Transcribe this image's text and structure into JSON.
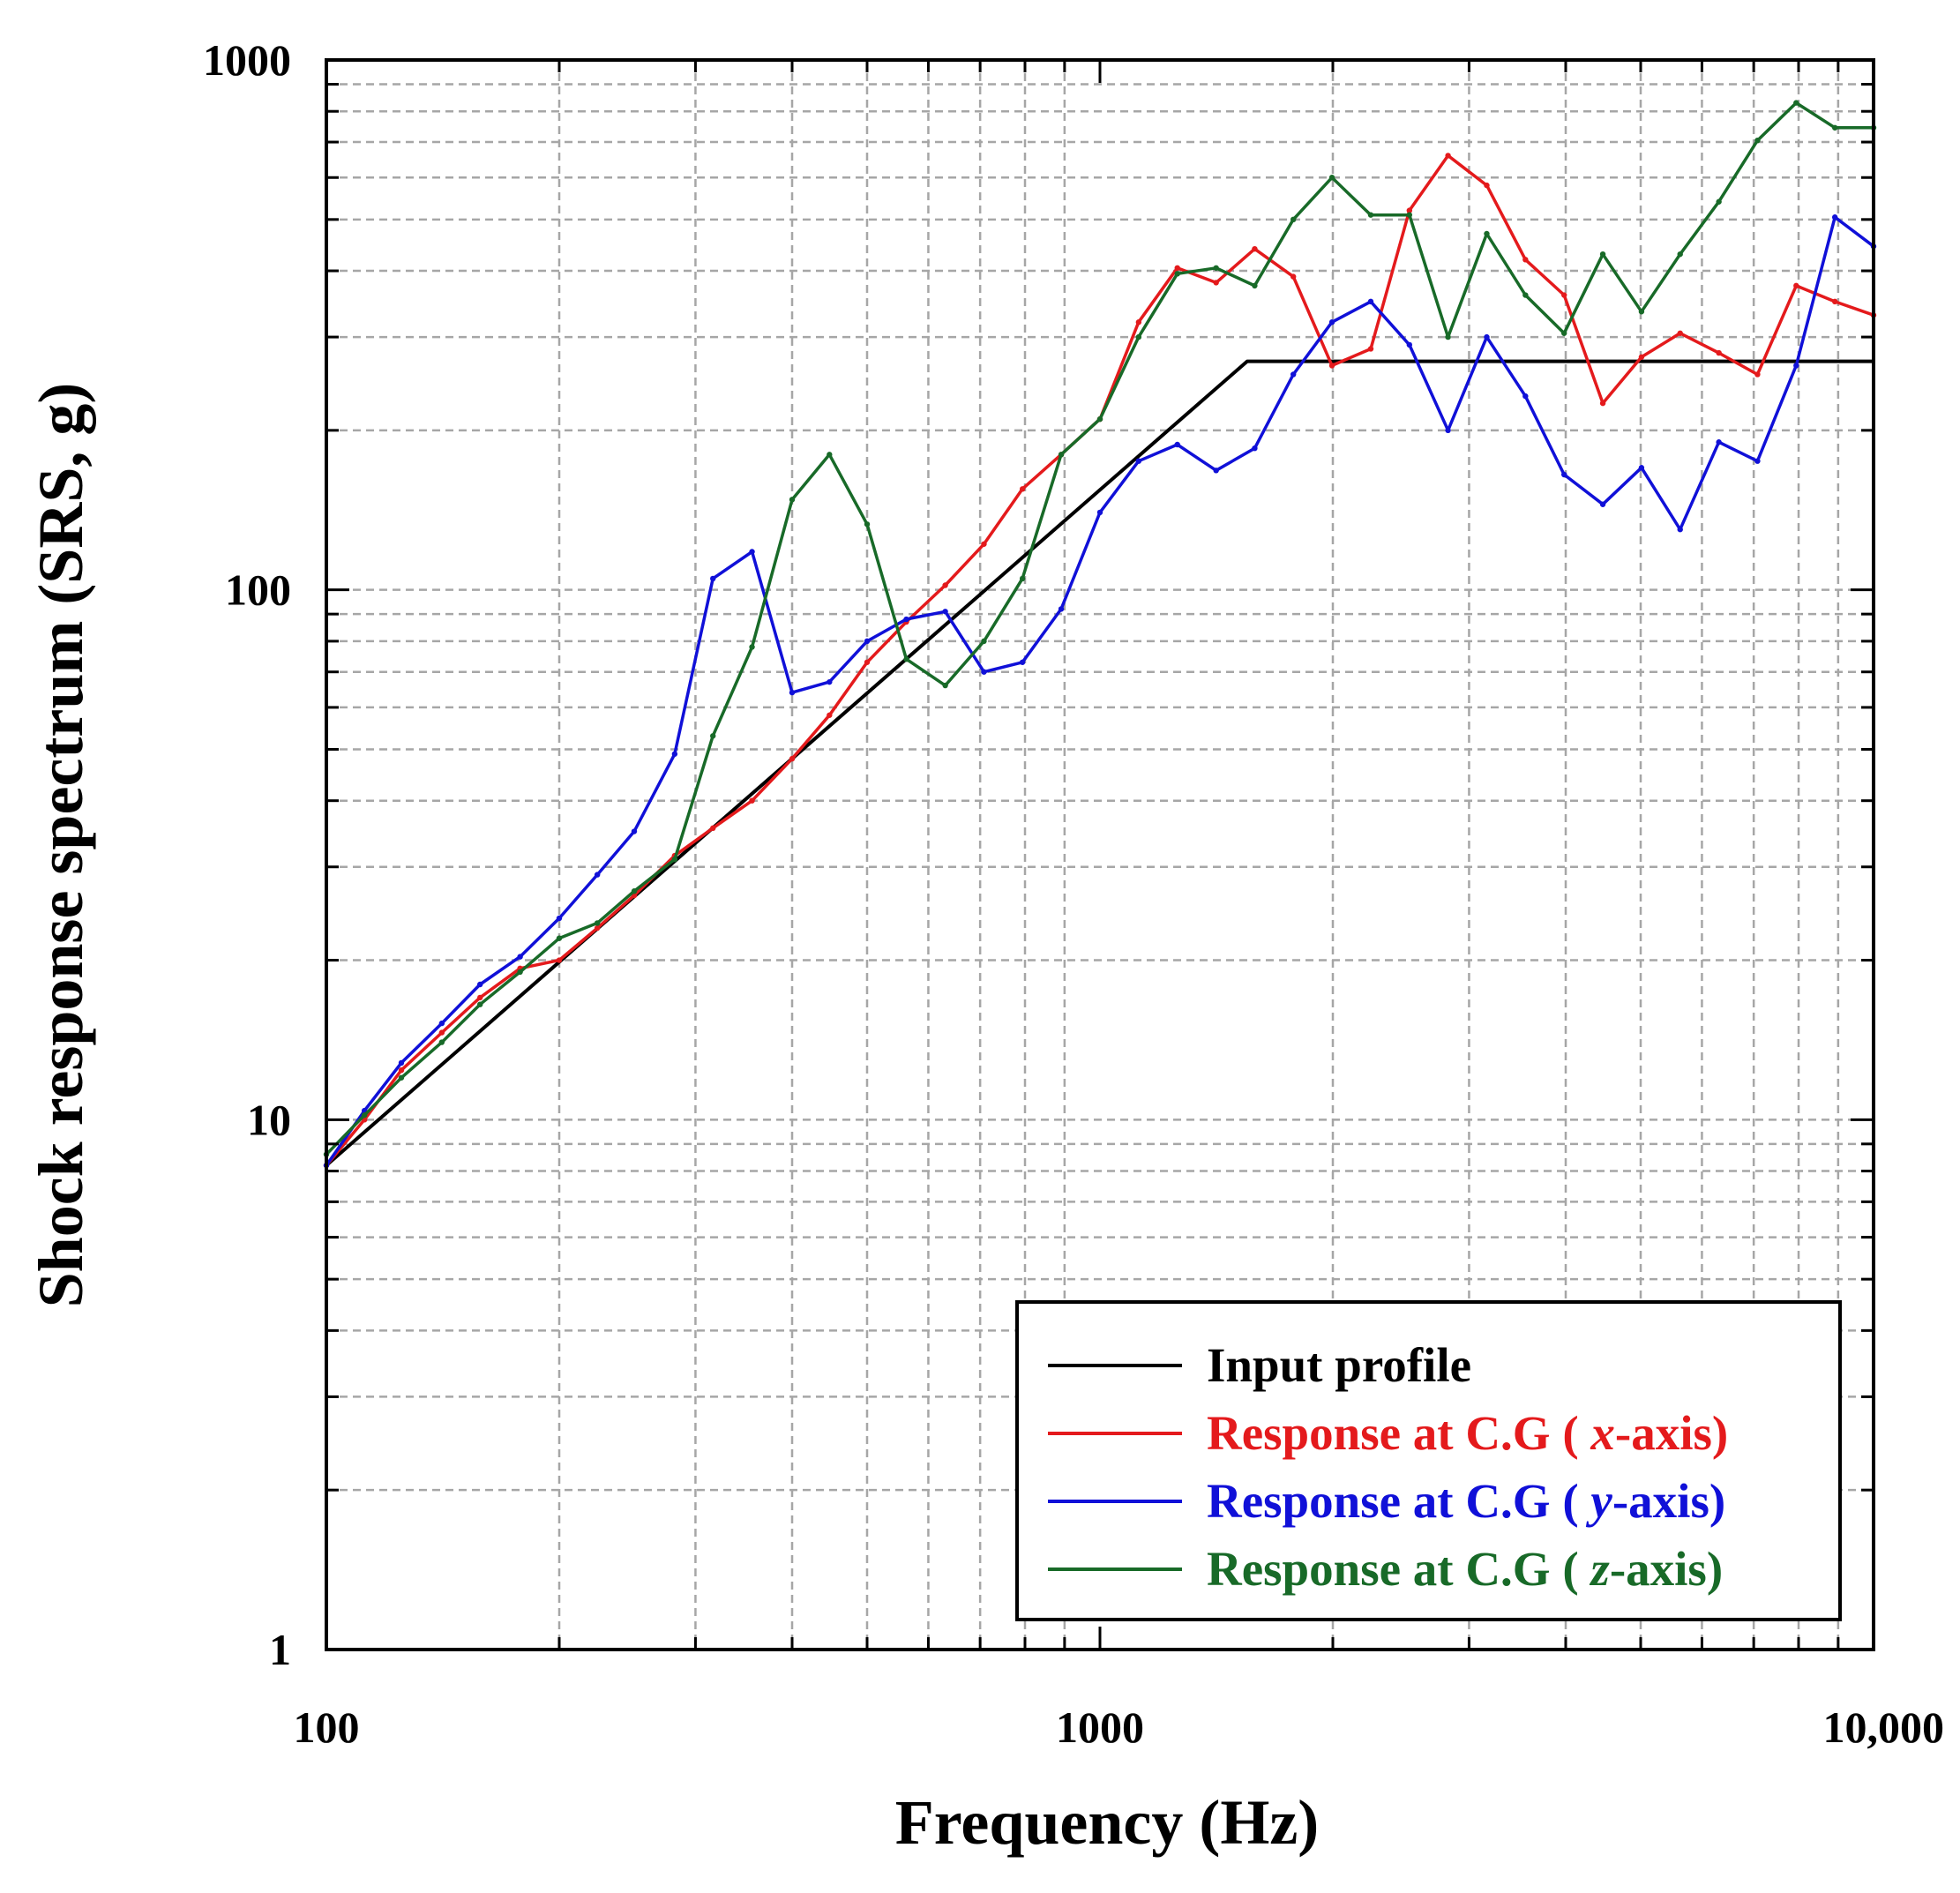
{
  "chart_data": {
    "type": "line",
    "x_scale": "log",
    "y_scale": "log",
    "xlabel": "Frequency (Hz)",
    "ylabel": "Shock response spectrum (SRS, g)",
    "xlim": [
      100,
      10000
    ],
    "ylim": [
      1,
      1000
    ],
    "x_ticks": [
      {
        "value": 100,
        "label": "100"
      },
      {
        "value": 1000,
        "label": "1000"
      },
      {
        "value": 10000,
        "label": "10,000"
      }
    ],
    "y_ticks": [
      {
        "value": 1,
        "label": "1"
      },
      {
        "value": 10,
        "label": "10"
      },
      {
        "value": 100,
        "label": "100"
      },
      {
        "value": 1000,
        "label": "1000"
      }
    ],
    "grid": true,
    "legend_position": "bottom-right",
    "series": [
      {
        "name": "Input profile",
        "label_pre": "Input profile",
        "label_italic": "",
        "label_post": "",
        "color": "#000000",
        "markers": false,
        "points": [
          [
            100,
            8.2
          ],
          [
            1550,
            270
          ],
          [
            10000,
            270
          ]
        ]
      },
      {
        "name": "Response at C.G ( x-axis)",
        "label_pre": "Response at C.G ( ",
        "label_italic": "x",
        "label_post": "-axis)",
        "color": "#e41a1c",
        "markers": true,
        "points": [
          [
            100,
            8.2
          ],
          [
            112,
            10
          ],
          [
            125,
            12.4
          ],
          [
            141,
            14.6
          ],
          [
            158,
            17
          ],
          [
            178,
            19.3
          ],
          [
            200,
            20
          ],
          [
            224,
            23
          ],
          [
            250,
            26.5
          ],
          [
            282,
            31.5
          ],
          [
            316,
            35.5
          ],
          [
            355,
            40
          ],
          [
            400,
            48
          ],
          [
            447,
            58
          ],
          [
            500,
            73
          ],
          [
            562,
            87
          ],
          [
            631,
            102
          ],
          [
            708,
            122
          ],
          [
            794,
            155
          ],
          [
            891,
            180
          ],
          [
            1000,
            210
          ],
          [
            1122,
            320
          ],
          [
            1259,
            405
          ],
          [
            1413,
            380
          ],
          [
            1585,
            440
          ],
          [
            1778,
            390
          ],
          [
            1995,
            265
          ],
          [
            2239,
            285
          ],
          [
            2512,
            520
          ],
          [
            2818,
            660
          ],
          [
            3162,
            580
          ],
          [
            3548,
            420
          ],
          [
            3981,
            360
          ],
          [
            4467,
            225
          ],
          [
            5012,
            275
          ],
          [
            5623,
            305
          ],
          [
            6310,
            280
          ],
          [
            7079,
            255
          ],
          [
            7943,
            375
          ],
          [
            8913,
            350
          ],
          [
            10000,
            330
          ]
        ]
      },
      {
        "name": "Response at C.G ( y-axis)",
        "label_pre": "Response at C.G ( ",
        "label_italic": "y",
        "label_post": "-axis)",
        "color": "#1010d8",
        "markers": true,
        "points": [
          [
            100,
            8.2
          ],
          [
            112,
            10.4
          ],
          [
            125,
            12.8
          ],
          [
            141,
            15.2
          ],
          [
            158,
            18
          ],
          [
            178,
            20.3
          ],
          [
            200,
            24
          ],
          [
            224,
            29
          ],
          [
            250,
            35
          ],
          [
            282,
            49
          ],
          [
            316,
            105
          ],
          [
            355,
            118
          ],
          [
            400,
            64
          ],
          [
            447,
            67
          ],
          [
            500,
            80
          ],
          [
            562,
            88
          ],
          [
            631,
            91
          ],
          [
            708,
            70
          ],
          [
            794,
            73
          ],
          [
            891,
            92
          ],
          [
            1000,
            140
          ],
          [
            1122,
            175
          ],
          [
            1259,
            188
          ],
          [
            1413,
            168
          ],
          [
            1585,
            185
          ],
          [
            1778,
            255
          ],
          [
            1995,
            320
          ],
          [
            2239,
            350
          ],
          [
            2512,
            290
          ],
          [
            2818,
            200
          ],
          [
            3162,
            300
          ],
          [
            3548,
            232
          ],
          [
            3981,
            165
          ],
          [
            4467,
            145
          ],
          [
            5012,
            170
          ],
          [
            5623,
            130
          ],
          [
            6310,
            190
          ],
          [
            7079,
            175
          ],
          [
            7943,
            265
          ],
          [
            8913,
            505
          ],
          [
            10000,
            445
          ]
        ]
      },
      {
        "name": "Response at C.G ( z-axis)",
        "label_pre": "Response at C.G ( ",
        "label_italic": "z",
        "label_post": "-axis)",
        "color": "#186a28",
        "markers": true,
        "points": [
          [
            100,
            8.6
          ],
          [
            112,
            10.2
          ],
          [
            125,
            12
          ],
          [
            141,
            14
          ],
          [
            158,
            16.5
          ],
          [
            178,
            19
          ],
          [
            200,
            22
          ],
          [
            224,
            23.5
          ],
          [
            250,
            27
          ],
          [
            282,
            31
          ],
          [
            316,
            53
          ],
          [
            355,
            78
          ],
          [
            400,
            148
          ],
          [
            447,
            180
          ],
          [
            500,
            133
          ],
          [
            562,
            74
          ],
          [
            631,
            66
          ],
          [
            708,
            80
          ],
          [
            794,
            105
          ],
          [
            891,
            180
          ],
          [
            1000,
            210
          ],
          [
            1122,
            300
          ],
          [
            1259,
            395
          ],
          [
            1413,
            405
          ],
          [
            1585,
            375
          ],
          [
            1778,
            500
          ],
          [
            1995,
            600
          ],
          [
            2239,
            510
          ],
          [
            2512,
            510
          ],
          [
            2818,
            300
          ],
          [
            3162,
            470
          ],
          [
            3548,
            360
          ],
          [
            3981,
            305
          ],
          [
            4467,
            430
          ],
          [
            5012,
            335
          ],
          [
            5623,
            430
          ],
          [
            6310,
            540
          ],
          [
            7079,
            705
          ],
          [
            7943,
            830
          ],
          [
            8913,
            745
          ],
          [
            10000,
            745
          ]
        ]
      }
    ]
  }
}
